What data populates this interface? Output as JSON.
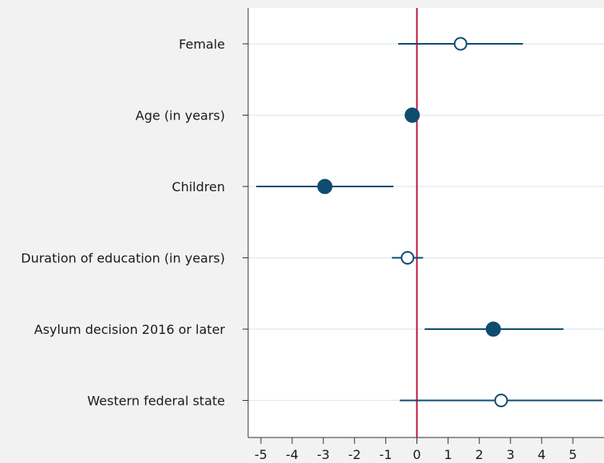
{
  "chart_data": {
    "type": "scatter",
    "subtype": "coefficient-plot",
    "title": "",
    "xlabel": "",
    "ylabel": "",
    "xlim": [
      -5.3,
      6.0
    ],
    "x_ticks": [
      -5,
      -4,
      -3,
      -2,
      -1,
      0,
      1,
      2,
      3,
      4,
      5
    ],
    "reference_line_x": 0,
    "grid": true,
    "categories": [
      "Female",
      "Age (in years)",
      "Children",
      "Duration of education (in years)",
      "Asylum decision 2016 or later",
      "Western federal state"
    ],
    "points": [
      {
        "category": "Female",
        "estimate": 1.4,
        "ci_low": -0.6,
        "ci_high": 3.4,
        "significant": false
      },
      {
        "category": "Age (in years)",
        "estimate": -0.15,
        "ci_low": -0.15,
        "ci_high": -0.15,
        "significant": true
      },
      {
        "category": "Children",
        "estimate": -2.95,
        "ci_low": -5.15,
        "ci_high": -0.75,
        "significant": true
      },
      {
        "category": "Duration of education (in years)",
        "estimate": -0.3,
        "ci_low": -0.8,
        "ci_high": 0.2,
        "significant": false
      },
      {
        "category": "Asylum decision 2016 or later",
        "estimate": 2.45,
        "ci_low": 0.25,
        "ci_high": 4.7,
        "significant": true
      },
      {
        "category": "Western federal state",
        "estimate": 2.7,
        "ci_low": -0.55,
        "ci_high": 6.0,
        "significant": false
      }
    ],
    "colors": {
      "marker": "#0f4c6e",
      "marker_open_fill": "#ffffff",
      "ci_line": "#0f4c6e",
      "reference_line": "#c0143c",
      "grid": "#dcebf0",
      "axis": "#333333",
      "background": "#f2f2f2",
      "plot_background": "#ffffff"
    }
  }
}
